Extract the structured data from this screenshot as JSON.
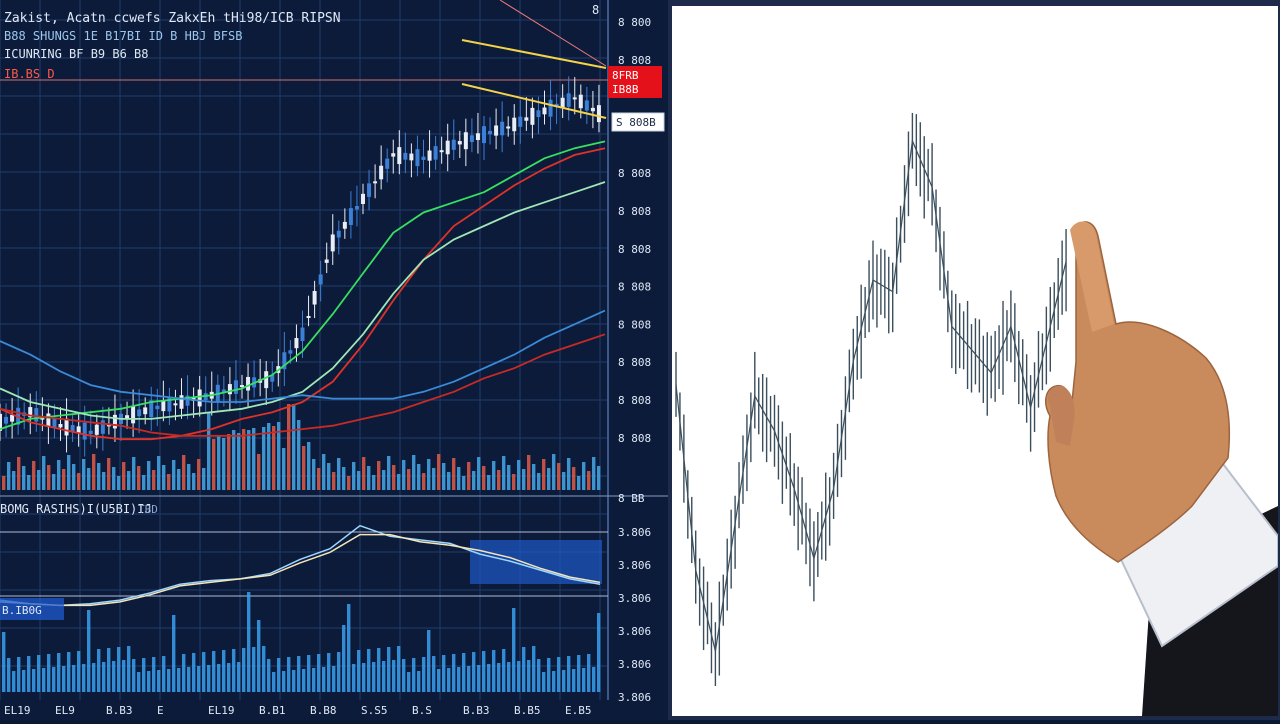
{
  "left_chart": {
    "header_lines": [
      "Zakist,   Acatn  ccwefs  ZakxEh  tHi98/ICB  RIPSN",
      "B88  SHUNGS  1E  B17BI  ID  B  HBJ  BFSB",
      "ICUNRING  BF  B9  B6  B8",
      "IB.BS  D"
    ],
    "price_axis_top": "8",
    "price_ticks": [
      "8 800",
      "8 808",
      "8 808",
      "8 808",
      "8 808",
      "8 808",
      "8 808",
      "8 808",
      "8 808",
      "8 808",
      "8 808",
      "8 808"
    ],
    "red_badge_lines": [
      "8FRB",
      "IB8B"
    ],
    "white_badge": "S 808B",
    "indicator_label": "BOMG RASIHS)I(U5BI)IJ",
    "indicator_label2": "TBD",
    "lower_label": "B.IB0G",
    "lower_axis_top": "8 BB",
    "lower_ticks": [
      "3.806",
      "3.806",
      "3.806",
      "3.806",
      "3.806",
      "3.806"
    ],
    "date_ticks": [
      "EL19",
      "EL9",
      "B.B3",
      "E",
      "EL19",
      "B.B1",
      "B.B8",
      "S.S5",
      "B.S",
      "B.B3",
      "B.B5",
      "E.B5"
    ]
  },
  "colors": {
    "bg": "#0c1b3a",
    "grid": "#1f3d6b",
    "up": "#e8eef8",
    "down": "#3c7fd6",
    "ma_green": "#38e060",
    "ma_red": "#e03228",
    "ma_lightgreen": "#9fe8b6",
    "ma_blue": "#3a8ad8",
    "ma_darkred": "#c82a24",
    "vol_red": "#e05a48",
    "vol_blue": "#46a8e8",
    "right_line": "#3a4e5c"
  },
  "chart_data": [
    {
      "type": "line",
      "panel": "upper-left price",
      "note": "candlestick price with moving averages and volume",
      "x": [
        0,
        5,
        10,
        15,
        20,
        25,
        30,
        35,
        40,
        45,
        50,
        55,
        60,
        65,
        70,
        75,
        80,
        85,
        90,
        95,
        100
      ],
      "series": [
        {
          "values": [
            60,
            63,
            59,
            57,
            61,
            64,
            66,
            68,
            71,
            73,
            86,
            113,
            126,
            139,
            138,
            142,
            145,
            148,
            152,
            156,
            150
          ]
        },
        {
          "values": [
            58,
            61,
            62,
            63,
            64,
            66,
            67,
            68,
            70,
            74,
            81,
            92,
            104,
            116,
            122,
            125,
            128,
            133,
            138,
            141,
            143
          ]
        },
        {
          "values": [
            64,
            60,
            58,
            56,
            55,
            55,
            56,
            58,
            61,
            63,
            66,
            72,
            83,
            96,
            108,
            118,
            124,
            130,
            135,
            139,
            141
          ]
        },
        {
          "values": [
            70,
            66,
            64,
            62,
            61,
            61,
            62,
            63,
            64,
            66,
            69,
            76,
            86,
            98,
            108,
            114,
            118,
            122,
            125,
            128,
            131
          ]
        },
        {
          "values": [
            84,
            80,
            75,
            71,
            69,
            68,
            67,
            66,
            66,
            67,
            68,
            67,
            67,
            67,
            69,
            72,
            76,
            80,
            85,
            89,
            93
          ]
        },
        {
          "values": [
            64,
            62,
            61,
            60,
            59,
            57,
            56,
            56,
            56,
            57,
            58,
            59,
            61,
            63,
            66,
            69,
            73,
            76,
            80,
            83,
            86
          ]
        }
      ],
      "ylim": [
        40,
        170
      ]
    },
    {
      "type": "line",
      "panel": "lower-left indicator",
      "x": [
        0,
        5,
        10,
        15,
        20,
        25,
        30,
        35,
        40,
        45,
        50,
        55,
        60,
        65,
        70,
        75,
        80,
        85,
        90,
        95,
        100
      ],
      "series": [
        {
          "values": [
            18,
            16,
            15,
            16,
            18,
            22,
            27,
            29,
            30,
            33,
            41,
            47,
            60,
            54,
            52,
            50,
            44,
            40,
            35,
            30,
            27
          ]
        },
        {
          "values": [
            17,
            16,
            15,
            15,
            17,
            21,
            26,
            28,
            30,
            32,
            39,
            45,
            55,
            55,
            51,
            49,
            46,
            42,
            36,
            31,
            28
          ]
        }
      ],
      "ylim": [
        0,
        70
      ]
    },
    {
      "type": "line",
      "panel": "right white chart",
      "x": [
        0,
        5,
        10,
        15,
        20,
        25,
        30,
        35,
        40,
        45,
        50,
        55,
        60,
        65,
        70,
        75,
        80,
        85,
        90,
        95,
        100
      ],
      "series": [
        {
          "values": [
            52,
            20,
            6,
            28,
            50,
            44,
            34,
            22,
            34,
            56,
            70,
            68,
            94,
            86,
            62,
            58,
            54,
            62,
            48,
            62,
            76
          ]
        }
      ],
      "ylim": [
        0,
        100
      ]
    }
  ]
}
